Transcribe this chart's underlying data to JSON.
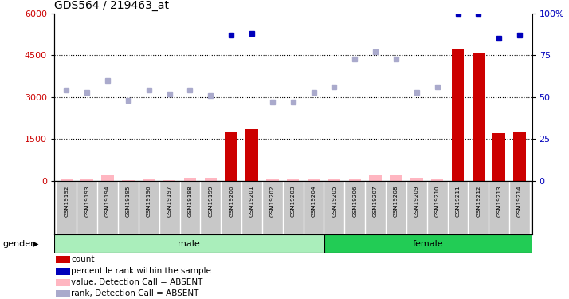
{
  "title": "GDS564 / 219463_at",
  "samples": [
    "GSM19192",
    "GSM19193",
    "GSM19194",
    "GSM19195",
    "GSM19196",
    "GSM19197",
    "GSM19198",
    "GSM19199",
    "GSM19200",
    "GSM19201",
    "GSM19202",
    "GSM19203",
    "GSM19204",
    "GSM19205",
    "GSM19206",
    "GSM19207",
    "GSM19208",
    "GSM19209",
    "GSM19210",
    "GSM19211",
    "GSM19212",
    "GSM19213",
    "GSM19214"
  ],
  "gender_groups": [
    {
      "label": "male",
      "start": 0,
      "end": 13,
      "color": "#AAEEBB"
    },
    {
      "label": "female",
      "start": 13,
      "end": 23,
      "color": "#22CC55"
    }
  ],
  "count_values": [
    80,
    80,
    200,
    30,
    80,
    30,
    100,
    100,
    1750,
    1850,
    80,
    80,
    80,
    80,
    80,
    200,
    200,
    100,
    80,
    4750,
    4600,
    1700,
    1750
  ],
  "count_is_absent": [
    true,
    true,
    true,
    true,
    true,
    true,
    true,
    true,
    false,
    false,
    true,
    true,
    true,
    true,
    true,
    true,
    true,
    true,
    true,
    false,
    false,
    false,
    false
  ],
  "percentile_values": [
    54,
    53,
    60,
    48,
    54,
    52,
    54,
    51,
    87,
    88,
    47,
    47,
    53,
    56,
    73,
    77,
    73,
    53,
    56,
    100,
    100,
    85,
    87
  ],
  "percentile_is_absent": [
    true,
    true,
    true,
    true,
    true,
    true,
    true,
    true,
    false,
    false,
    true,
    true,
    true,
    true,
    true,
    true,
    true,
    true,
    true,
    false,
    false,
    false,
    false
  ],
  "ylim_left": [
    0,
    6000
  ],
  "ylim_right": [
    0,
    100
  ],
  "yticks_left": [
    0,
    1500,
    3000,
    4500,
    6000
  ],
  "yticks_right": [
    0,
    25,
    50,
    75,
    100
  ],
  "bar_color_present": "#CC0000",
  "bar_color_absent": "#FFB6C1",
  "dot_color_present": "#0000BB",
  "dot_color_absent": "#AAAACC",
  "legend_items": [
    {
      "color": "#CC0000",
      "label": "count"
    },
    {
      "color": "#0000BB",
      "label": "percentile rank within the sample"
    },
    {
      "color": "#FFB6C1",
      "label": "value, Detection Call = ABSENT"
    },
    {
      "color": "#AAAACC",
      "label": "rank, Detection Call = ABSENT"
    }
  ],
  "gender_label": "gender",
  "background_color": "#FFFFFF",
  "plot_bg_color": "#FFFFFF"
}
